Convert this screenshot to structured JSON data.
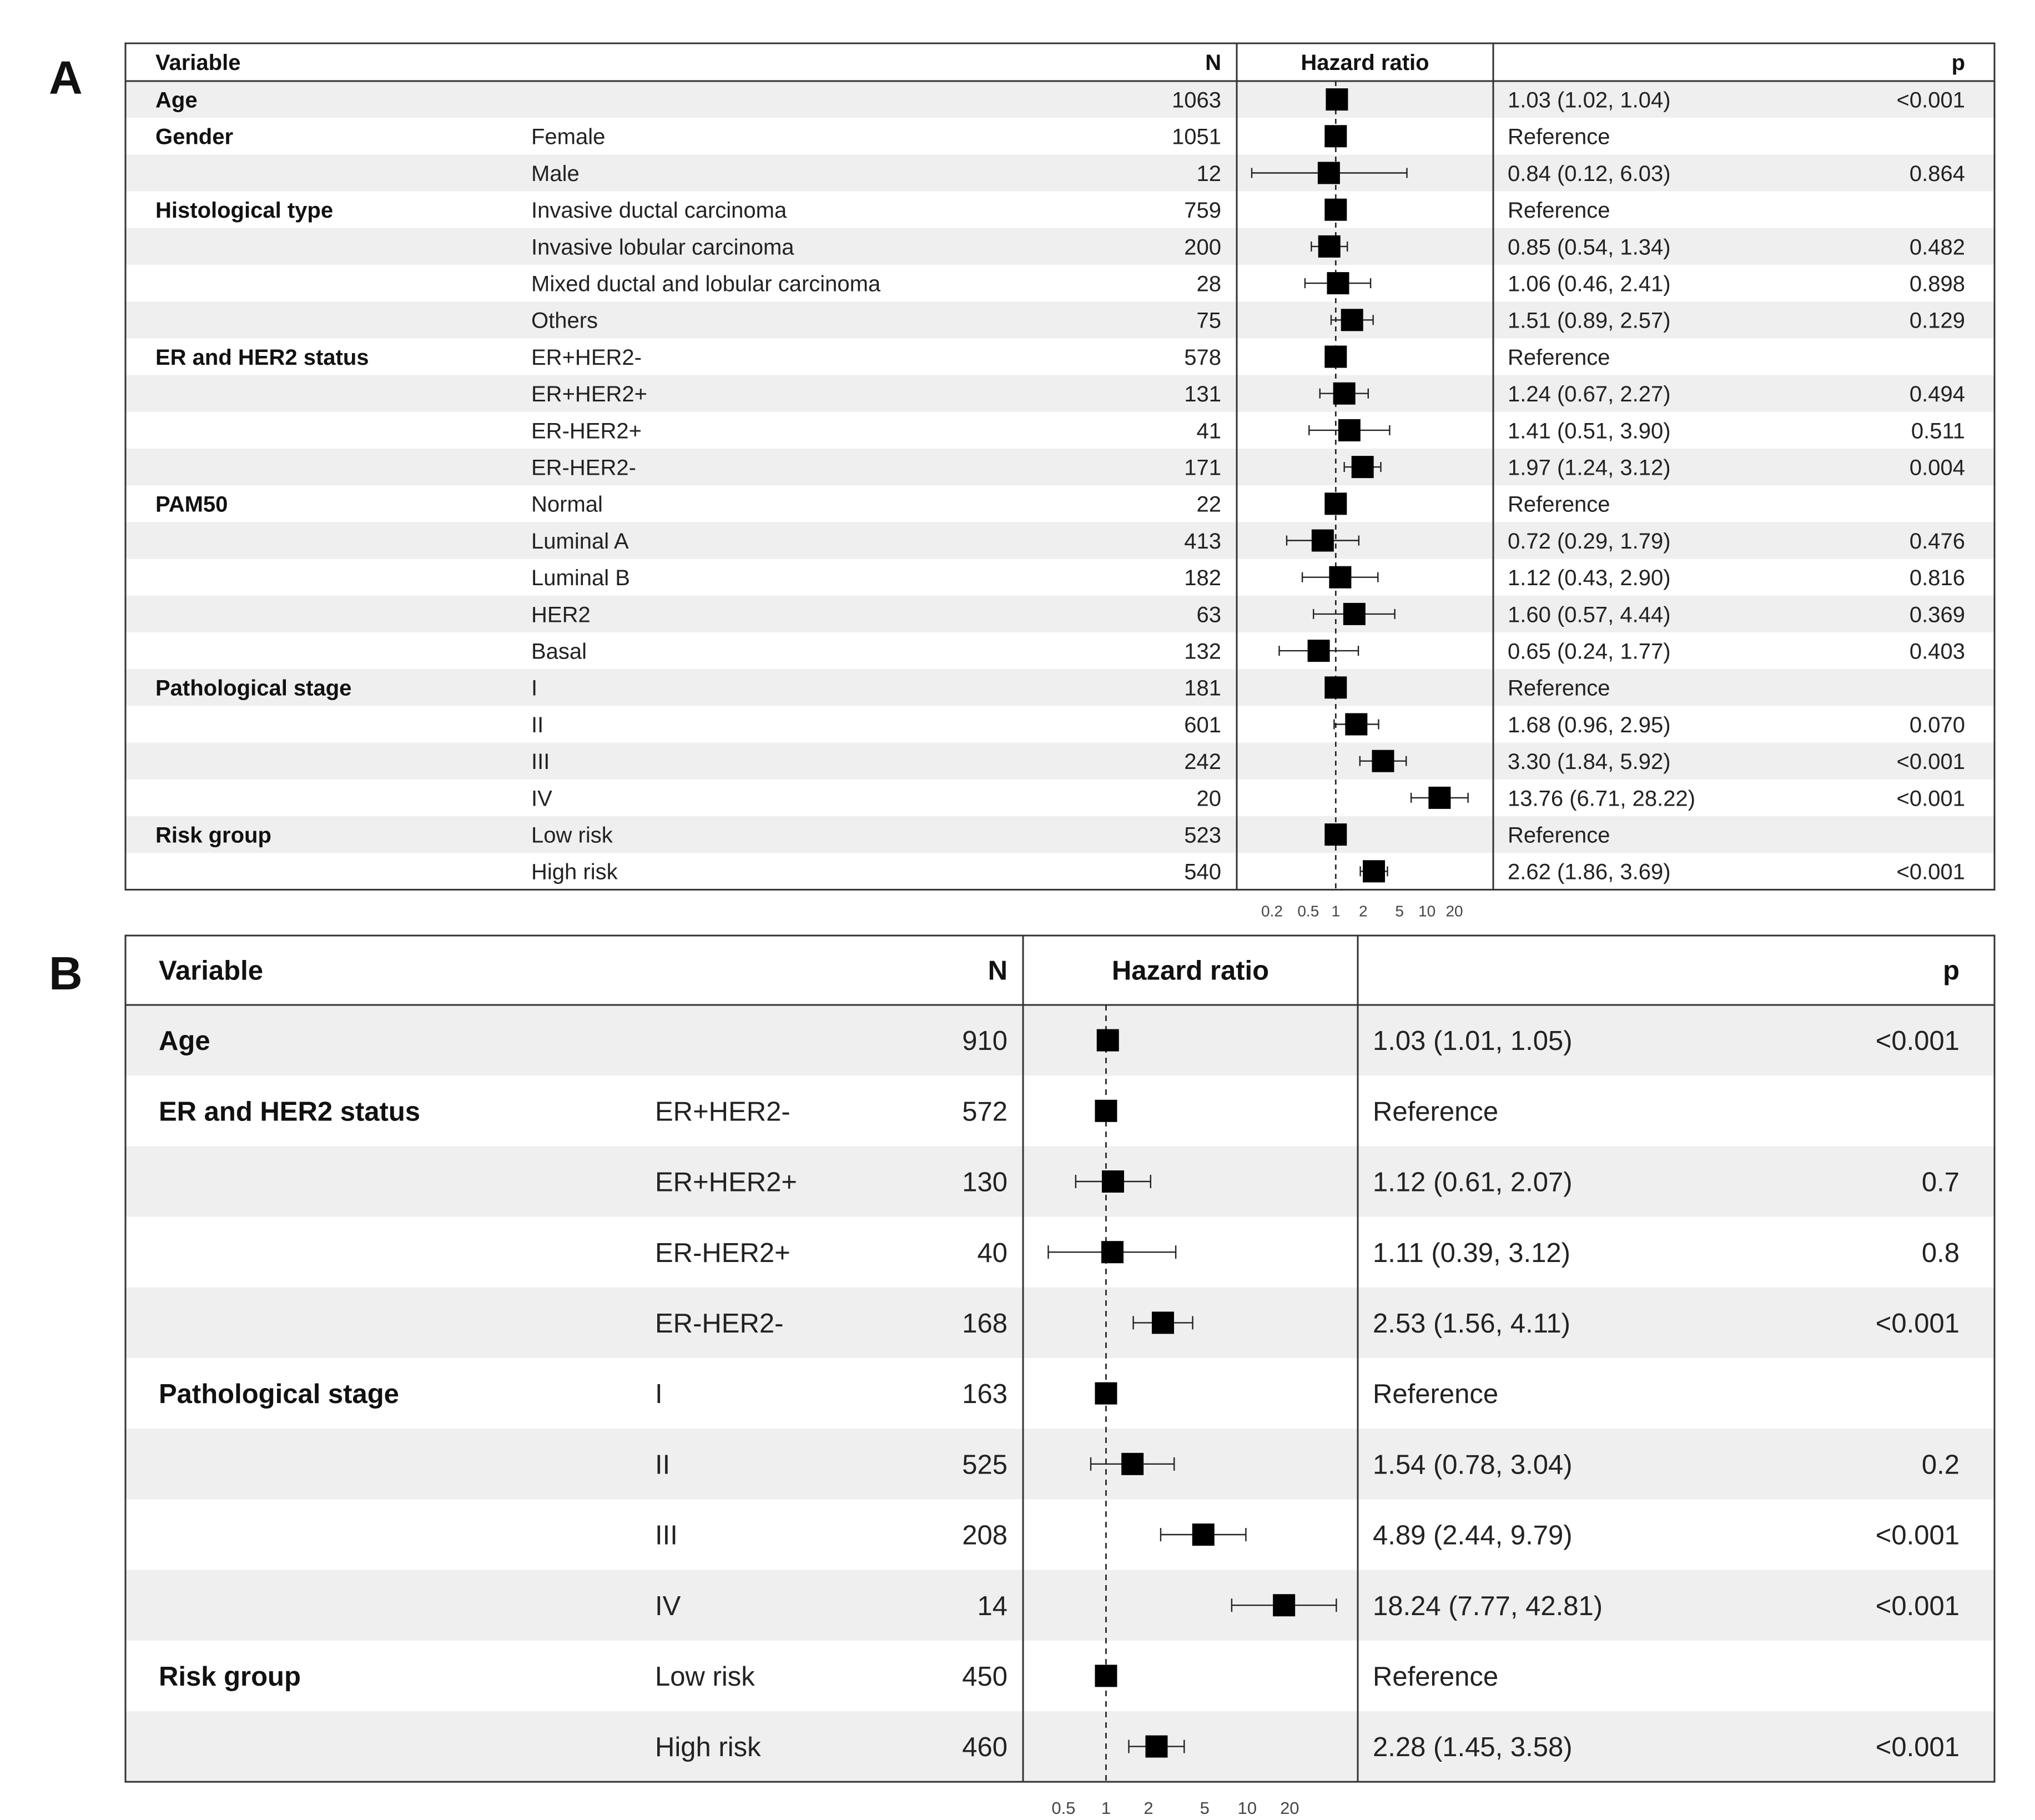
{
  "chart_data": [
    {
      "type": "forest",
      "panel_label": "A",
      "headers": {
        "variable": "Variable",
        "n": "N",
        "hr": "Hazard ratio",
        "p": "p"
      },
      "axis": {
        "scale": "log",
        "ticks": [
          "0.2",
          "0.5",
          "1",
          "2",
          "5",
          "10",
          "20"
        ],
        "tick_values": [
          0.2,
          0.5,
          1,
          2,
          5,
          10,
          20
        ],
        "reference_line": 1
      },
      "rows": [
        {
          "variable": "Age",
          "level": "",
          "n": "1063",
          "hr": 1.03,
          "lo": 1.02,
          "hi": 1.04,
          "estimate": "1.03 (1.02, 1.04)",
          "p": "<0.001"
        },
        {
          "variable": "Gender",
          "level": "Female",
          "n": "1051",
          "hr": 1.0,
          "lo": 1.0,
          "hi": 1.0,
          "estimate": "Reference",
          "p": ""
        },
        {
          "variable": "",
          "level": "Male",
          "n": "12",
          "hr": 0.84,
          "lo": 0.12,
          "hi": 6.03,
          "estimate": "0.84 (0.12, 6.03)",
          "p": "0.864"
        },
        {
          "variable": "Histological type",
          "level": "Invasive ductal carcinoma",
          "n": "759",
          "hr": 1.0,
          "lo": 1.0,
          "hi": 1.0,
          "estimate": "Reference",
          "p": ""
        },
        {
          "variable": "",
          "level": "Invasive lobular carcinoma",
          "n": "200",
          "hr": 0.85,
          "lo": 0.54,
          "hi": 1.34,
          "estimate": "0.85 (0.54, 1.34)",
          "p": "0.482"
        },
        {
          "variable": "",
          "level": "Mixed ductal and lobular carcinoma",
          "n": "28",
          "hr": 1.06,
          "lo": 0.46,
          "hi": 2.41,
          "estimate": "1.06 (0.46, 2.41)",
          "p": "0.898"
        },
        {
          "variable": "",
          "level": "Others",
          "n": "75",
          "hr": 1.51,
          "lo": 0.89,
          "hi": 2.57,
          "estimate": "1.51 (0.89, 2.57)",
          "p": "0.129"
        },
        {
          "variable": "ER and HER2 status",
          "level": "ER+HER2-",
          "n": "578",
          "hr": 1.0,
          "lo": 1.0,
          "hi": 1.0,
          "estimate": "Reference",
          "p": ""
        },
        {
          "variable": "",
          "level": "ER+HER2+",
          "n": "131",
          "hr": 1.24,
          "lo": 0.67,
          "hi": 2.27,
          "estimate": "1.24 (0.67, 2.27)",
          "p": "0.494"
        },
        {
          "variable": "",
          "level": "ER-HER2+",
          "n": "41",
          "hr": 1.41,
          "lo": 0.51,
          "hi": 3.9,
          "estimate": "1.41 (0.51, 3.90)",
          "p": "0.511"
        },
        {
          "variable": "",
          "level": "ER-HER2-",
          "n": "171",
          "hr": 1.97,
          "lo": 1.24,
          "hi": 3.12,
          "estimate": "1.97 (1.24, 3.12)",
          "p": "0.004"
        },
        {
          "variable": "PAM50",
          "level": "Normal",
          "n": "22",
          "hr": 1.0,
          "lo": 1.0,
          "hi": 1.0,
          "estimate": "Reference",
          "p": ""
        },
        {
          "variable": "",
          "level": "Luminal A",
          "n": "413",
          "hr": 0.72,
          "lo": 0.29,
          "hi": 1.79,
          "estimate": "0.72 (0.29, 1.79)",
          "p": "0.476"
        },
        {
          "variable": "",
          "level": "Luminal B",
          "n": "182",
          "hr": 1.12,
          "lo": 0.43,
          "hi": 2.9,
          "estimate": "1.12 (0.43, 2.90)",
          "p": "0.816"
        },
        {
          "variable": "",
          "level": "HER2",
          "n": "63",
          "hr": 1.6,
          "lo": 0.57,
          "hi": 4.44,
          "estimate": "1.60 (0.57, 4.44)",
          "p": "0.369"
        },
        {
          "variable": "",
          "level": "Basal",
          "n": "132",
          "hr": 0.65,
          "lo": 0.24,
          "hi": 1.77,
          "estimate": "0.65 (0.24, 1.77)",
          "p": "0.403"
        },
        {
          "variable": "Pathological stage",
          "level": "I",
          "n": "181",
          "hr": 1.0,
          "lo": 1.0,
          "hi": 1.0,
          "estimate": "Reference",
          "p": ""
        },
        {
          "variable": "",
          "level": "II",
          "n": "601",
          "hr": 1.68,
          "lo": 0.96,
          "hi": 2.95,
          "estimate": "1.68 (0.96, 2.95)",
          "p": "0.070"
        },
        {
          "variable": "",
          "level": "III",
          "n": "242",
          "hr": 3.3,
          "lo": 1.84,
          "hi": 5.92,
          "estimate": "3.30 (1.84, 5.92)",
          "p": "<0.001"
        },
        {
          "variable": "",
          "level": "IV",
          "n": "20",
          "hr": 13.76,
          "lo": 6.71,
          "hi": 28.22,
          "estimate": "13.76 (6.71, 28.22)",
          "p": "<0.001"
        },
        {
          "variable": "Risk group",
          "level": "Low risk",
          "n": "523",
          "hr": 1.0,
          "lo": 1.0,
          "hi": 1.0,
          "estimate": "Reference",
          "p": ""
        },
        {
          "variable": "",
          "level": "High risk",
          "n": "540",
          "hr": 2.62,
          "lo": 1.86,
          "hi": 3.69,
          "estimate": "2.62 (1.86, 3.69)",
          "p": "<0.001"
        }
      ]
    },
    {
      "type": "forest",
      "panel_label": "B",
      "headers": {
        "variable": "Variable",
        "n": "N",
        "hr": "Hazard ratio",
        "p": "p"
      },
      "axis": {
        "scale": "log",
        "ticks": [
          "0.5",
          "1",
          "2",
          "5",
          "10",
          "20"
        ],
        "tick_values": [
          0.5,
          1,
          2,
          5,
          10,
          20
        ],
        "reference_line": 1
      },
      "rows": [
        {
          "variable": "Age",
          "level": "",
          "n": "910",
          "hr": 1.03,
          "lo": 1.01,
          "hi": 1.05,
          "estimate": "1.03 (1.01, 1.05)",
          "p": "<0.001"
        },
        {
          "variable": "ER and HER2 status",
          "level": "ER+HER2-",
          "n": "572",
          "hr": 1.0,
          "lo": 1.0,
          "hi": 1.0,
          "estimate": "Reference",
          "p": ""
        },
        {
          "variable": "",
          "level": "ER+HER2+",
          "n": "130",
          "hr": 1.12,
          "lo": 0.61,
          "hi": 2.07,
          "estimate": "1.12 (0.61, 2.07)",
          "p": "0.7"
        },
        {
          "variable": "",
          "level": "ER-HER2+",
          "n": "40",
          "hr": 1.11,
          "lo": 0.39,
          "hi": 3.12,
          "estimate": "1.11 (0.39, 3.12)",
          "p": "0.8"
        },
        {
          "variable": "",
          "level": "ER-HER2-",
          "n": "168",
          "hr": 2.53,
          "lo": 1.56,
          "hi": 4.11,
          "estimate": "2.53 (1.56, 4.11)",
          "p": "<0.001"
        },
        {
          "variable": "Pathological stage",
          "level": "I",
          "n": "163",
          "hr": 1.0,
          "lo": 1.0,
          "hi": 1.0,
          "estimate": "Reference",
          "p": ""
        },
        {
          "variable": "",
          "level": "II",
          "n": "525",
          "hr": 1.54,
          "lo": 0.78,
          "hi": 3.04,
          "estimate": "1.54 (0.78, 3.04)",
          "p": "0.2"
        },
        {
          "variable": "",
          "level": "III",
          "n": "208",
          "hr": 4.89,
          "lo": 2.44,
          "hi": 9.79,
          "estimate": "4.89 (2.44, 9.79)",
          "p": "<0.001"
        },
        {
          "variable": "",
          "level": "IV",
          "n": "14",
          "hr": 18.24,
          "lo": 7.77,
          "hi": 42.81,
          "estimate": "18.24 (7.77, 42.81)",
          "p": "<0.001"
        },
        {
          "variable": "Risk group",
          "level": "Low risk",
          "n": "450",
          "hr": 1.0,
          "lo": 1.0,
          "hi": 1.0,
          "estimate": "Reference",
          "p": ""
        },
        {
          "variable": "",
          "level": "High risk",
          "n": "460",
          "hr": 2.28,
          "lo": 1.45,
          "hi": 3.58,
          "estimate": "2.28 (1.45, 3.58)",
          "p": "<0.001"
        }
      ]
    }
  ]
}
